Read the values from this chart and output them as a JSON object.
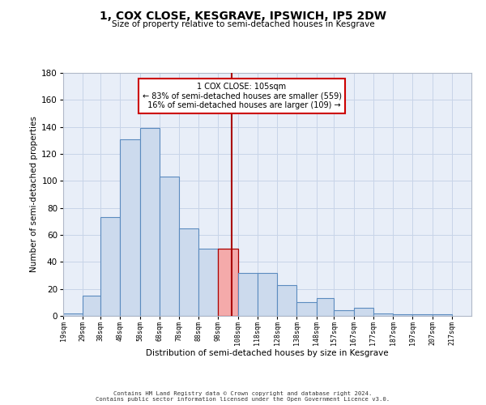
{
  "title": "1, COX CLOSE, KESGRAVE, IPSWICH, IP5 2DW",
  "subtitle": "Size of property relative to semi-detached houses in Kesgrave",
  "xlabel": "Distribution of semi-detached houses by size in Kesgrave",
  "ylabel": "Number of semi-detached properties",
  "bar_left_edges": [
    19,
    29,
    38,
    48,
    58,
    68,
    78,
    88,
    98,
    108,
    118,
    128,
    138,
    148,
    157,
    167,
    177,
    187,
    197,
    207
  ],
  "bar_widths": [
    10,
    9,
    10,
    10,
    10,
    10,
    10,
    10,
    10,
    10,
    10,
    10,
    10,
    9,
    10,
    10,
    10,
    10,
    10,
    10
  ],
  "bar_heights": [
    2,
    15,
    73,
    131,
    139,
    103,
    65,
    50,
    50,
    32,
    32,
    23,
    10,
    13,
    4,
    6,
    2,
    1,
    1,
    1
  ],
  "tick_labels": [
    "19sqm",
    "29sqm",
    "38sqm",
    "48sqm",
    "58sqm",
    "68sqm",
    "78sqm",
    "88sqm",
    "98sqm",
    "108sqm",
    "118sqm",
    "128sqm",
    "138sqm",
    "148sqm",
    "157sqm",
    "167sqm",
    "177sqm",
    "187sqm",
    "197sqm",
    "207sqm",
    "217sqm"
  ],
  "property_value": 105,
  "pct_smaller": 83,
  "count_smaller": 559,
  "pct_larger": 16,
  "count_larger": 109,
  "bar_color": "#ccdaed",
  "bar_edge_color": "#5b8bbf",
  "highlight_bar_color": "#f4aaaa",
  "highlight_bar_edge_color": "#aa0000",
  "vline_color": "#aa0000",
  "grid_color": "#c8d4e8",
  "bg_color": "#e8eef8",
  "ylim": [
    0,
    180
  ],
  "yticks": [
    0,
    20,
    40,
    60,
    80,
    100,
    120,
    140,
    160,
    180
  ],
  "footer_line1": "Contains HM Land Registry data © Crown copyright and database right 2024.",
  "footer_line2": "Contains public sector information licensed under the Open Government Licence v3.0."
}
